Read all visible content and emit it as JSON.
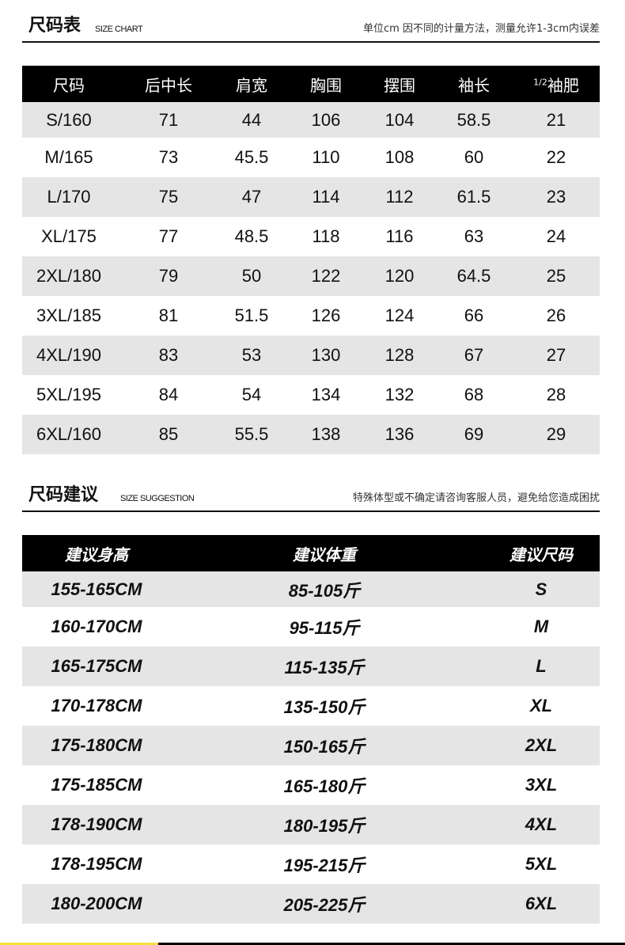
{
  "size_chart": {
    "title": "尺码表",
    "subtitle": "SIZE CHART",
    "note": "单位cm 因不同的计量方法，测量允许1-3cm内误差",
    "headers": [
      "尺码",
      "后中长",
      "肩宽",
      "胸围",
      "摆围",
      "袖长",
      "袖肥"
    ],
    "last_header_prefix": "1/2",
    "rows": [
      [
        "S/160",
        "71",
        "44",
        "106",
        "104",
        "58.5",
        "21"
      ],
      [
        "M/165",
        "73",
        "45.5",
        "110",
        "108",
        "60",
        "22"
      ],
      [
        "L/170",
        "75",
        "47",
        "114",
        "112",
        "61.5",
        "23"
      ],
      [
        "XL/175",
        "77",
        "48.5",
        "118",
        "116",
        "63",
        "24"
      ],
      [
        "2XL/180",
        "79",
        "50",
        "122",
        "120",
        "64.5",
        "25"
      ],
      [
        "3XL/185",
        "81",
        "51.5",
        "126",
        "124",
        "66",
        "26"
      ],
      [
        "4XL/190",
        "83",
        "53",
        "130",
        "128",
        "67",
        "27"
      ],
      [
        "5XL/195",
        "84",
        "54",
        "134",
        "132",
        "68",
        "28"
      ],
      [
        "6XL/160",
        "85",
        "55.5",
        "138",
        "136",
        "69",
        "29"
      ]
    ]
  },
  "size_suggestion": {
    "title": "尺码建议",
    "subtitle": "SIZE SUGGESTION",
    "note": "特殊体型或不确定请咨询客服人员，避免给您造成困扰",
    "headers": [
      "建议身高",
      "建议体重",
      "建议尺码"
    ],
    "rows": [
      [
        "155-165CM",
        "85-105斤",
        "S"
      ],
      [
        "160-170CM",
        "95-115斤",
        "M"
      ],
      [
        "165-175CM",
        "115-135斤",
        "L"
      ],
      [
        "170-178CM",
        "135-150斤",
        "XL"
      ],
      [
        "175-180CM",
        "150-165斤",
        "2XL"
      ],
      [
        "175-185CM",
        "165-180斤",
        "3XL"
      ],
      [
        "178-190CM",
        "180-195斤",
        "4XL"
      ],
      [
        "178-195CM",
        "195-215斤",
        "5XL"
      ],
      [
        "180-200CM",
        "205-225斤",
        "6XL"
      ]
    ]
  },
  "colors": {
    "header_bg": "#000000",
    "stripe": "#e5e5e5",
    "accent": "#f2e03a"
  }
}
